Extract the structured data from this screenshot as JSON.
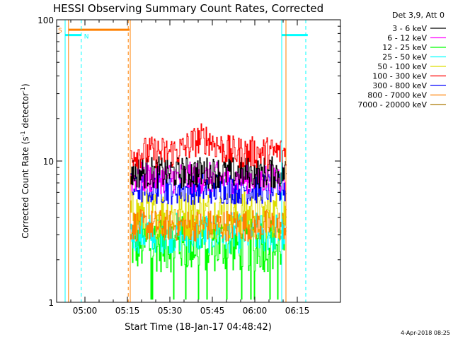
{
  "chart_data": {
    "type": "line",
    "title": "HESSI Observing Summary Count Rates, Corrected",
    "xlabel": "Start Time (18-Jan-17 04:48:42)",
    "ylabel": "Corrected Count Rate (s",
    "ylabel_sup1": "-1",
    "ylabel_mid": " detector",
    "ylabel_sup2": "-1",
    "ylabel_end": ")",
    "yscale": "log",
    "ylim": [
      1,
      100
    ],
    "xlim_minutes": [
      4.3,
      71.5
    ],
    "x_ticks": [
      {
        "label": "05:00",
        "min": 11.3
      },
      {
        "label": "05:15",
        "min": 26.3
      },
      {
        "label": "05:30",
        "min": 41.3
      },
      {
        "label": "05:45",
        "min": 56.3
      },
      {
        "label": "06:00",
        "min": 71.3
      },
      {
        "label": "06:15",
        "min": 86.3
      }
    ],
    "y_ticks": [
      {
        "label": "1",
        "value": 1
      },
      {
        "label": "10",
        "value": 10
      },
      {
        "label": "100",
        "value": 100
      }
    ],
    "legend_title": "Det 3,9, Att 0",
    "legend_position": "top-right",
    "series": [
      {
        "name": "3 - 6 keV",
        "color": "#000000",
        "level": 8.3,
        "spread": 1.3
      },
      {
        "name": "6 - 12 keV",
        "color": "#ff00ff",
        "level": 7.6,
        "spread": 1.3
      },
      {
        "name": "12 - 25 keV",
        "color": "#00ff00",
        "level": 2.6,
        "spread": 1.6
      },
      {
        "name": "25 - 50 keV",
        "color": "#00ffff",
        "level": 3.1,
        "spread": 1.4
      },
      {
        "name": "50 - 100 keV",
        "color": "#dddd00",
        "level": 4.2,
        "spread": 1.5
      },
      {
        "name": "100 - 300 keV",
        "color": "#ff0000",
        "level": 11.5,
        "spread": 1.3
      },
      {
        "name": "300 - 800 keV",
        "color": "#0000ff",
        "level": 6.4,
        "spread": 1.3
      },
      {
        "name": "800 - 7000 keV",
        "color": "#ff8000",
        "level": 3.5,
        "spread": 1.3
      },
      {
        "name": "7000 - 20000 keV",
        "color": "#aa7700",
        "level": 0,
        "spread": 0
      }
    ],
    "data_window_minutes": [
      27.3,
      82.3
    ],
    "flags": [
      {
        "label": "S",
        "color": "#ff8000",
        "start_min": 5.5,
        "end_min": 27.0,
        "level": 85
      },
      {
        "label": "N",
        "color": "#00ffff",
        "start_min": 4.3,
        "end_min": 10.0,
        "level": 78
      },
      {
        "label": "",
        "color": "#00ffff",
        "start_min": 80.8,
        "end_min": 90.0,
        "level": 78
      }
    ],
    "vertical_markers": [
      {
        "min": 4.3,
        "color": "#00ffff",
        "style": "solid"
      },
      {
        "min": 5.5,
        "color": "#ff8000",
        "style": "solid"
      },
      {
        "min": 10.0,
        "color": "#00ffff",
        "style": "dashed"
      },
      {
        "min": 26.6,
        "color": "#ff8000",
        "style": "dashed"
      },
      {
        "min": 27.3,
        "color": "#ff8000",
        "style": "solid"
      },
      {
        "min": 80.8,
        "color": "#00ffff",
        "style": "solid"
      },
      {
        "min": 82.3,
        "color": "#ff8000",
        "style": "solid"
      },
      {
        "min": 89.3,
        "color": "#00ffff",
        "style": "dashed"
      }
    ]
  },
  "footer": {
    "date": "4-Apr-2018 08:25"
  }
}
